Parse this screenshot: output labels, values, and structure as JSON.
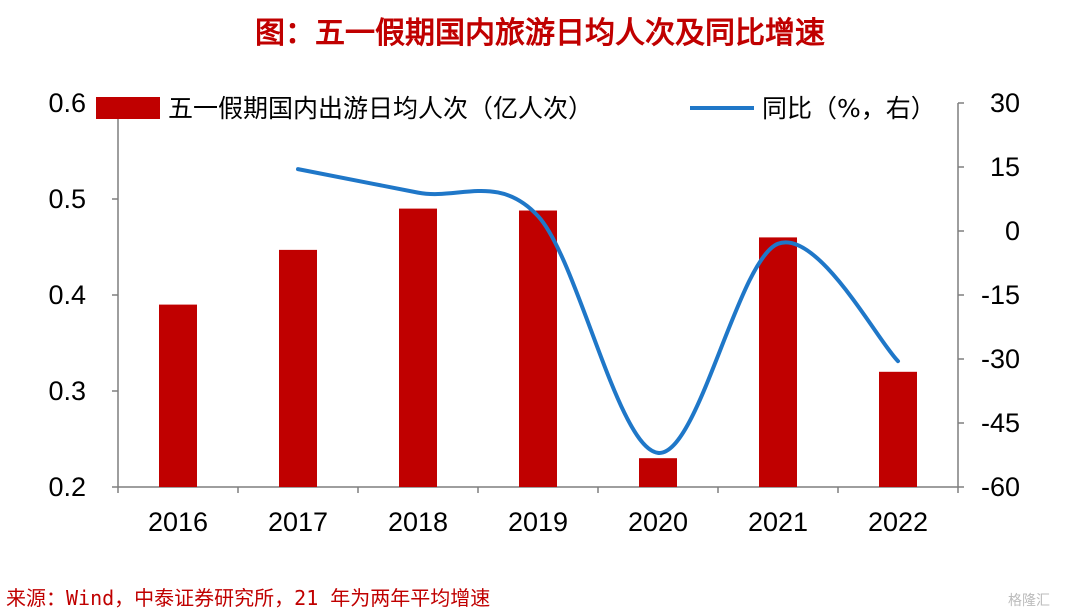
{
  "title": "图：五一假期国内旅游日均人次及同比增速",
  "source": "来源：Wind，中泰证券研究所，21 年为两年平均增速",
  "watermark": "格隆汇",
  "colors": {
    "bar": "#C00000",
    "line": "#1F77C8",
    "title": "#C00000",
    "axis": "#7f7f7f"
  },
  "chart_data": {
    "type": "bar",
    "categories": [
      "2016",
      "2017",
      "2018",
      "2019",
      "2020",
      "2021",
      "2022"
    ],
    "series": [
      {
        "name": "五一假期国内出游日均人次（亿人次）",
        "type": "bar",
        "axis": "left",
        "values": [
          0.39,
          0.447,
          0.49,
          0.488,
          0.23,
          0.46,
          0.32
        ]
      },
      {
        "name": "同比（%，右）",
        "type": "line",
        "axis": "right",
        "values": [
          null,
          14.5,
          9,
          3.5,
          -52,
          -3,
          -30.5
        ]
      }
    ],
    "yleft": {
      "min": 0.2,
      "max": 0.6,
      "ticks": [
        "0.2",
        "0.3",
        "0.4",
        "0.5",
        "0.6"
      ]
    },
    "yright": {
      "min": -60,
      "max": 30,
      "ticks": [
        "-60",
        "-45",
        "-30",
        "-15",
        "0",
        "15",
        "30"
      ]
    },
    "legend_position": "top",
    "grid": false
  }
}
